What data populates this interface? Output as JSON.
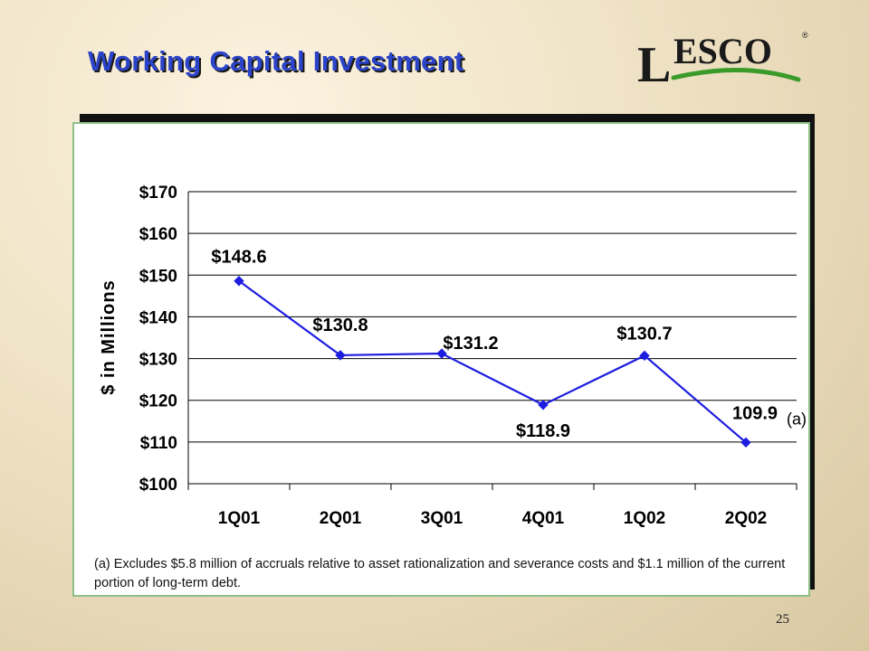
{
  "slide": {
    "title": "Working Capital Investment",
    "footnote": "(a) Excludes $5.8 million of accruals relative to asset rationalization and severance costs and $1.1 million of the current portion of long-term debt.",
    "page_number": "25"
  },
  "logo": {
    "text": "LESCO",
    "registered_mark": "®",
    "color": "#1a1a1a",
    "swoosh_color": "#3a9b2a"
  },
  "colors": {
    "title": "#2c44c9",
    "series": "#1d1de0",
    "panel_border": "#8fbf88"
  },
  "chart_data": {
    "type": "line",
    "categories": [
      "1Q01",
      "2Q01",
      "3Q01",
      "4Q01",
      "1Q02",
      "2Q02"
    ],
    "series": [
      {
        "values": [
          148.6,
          130.8,
          131.2,
          118.9,
          130.7,
          109.9
        ]
      }
    ],
    "data_labels": [
      "$148.6",
      "$130.8",
      "$131.2",
      "$118.9",
      "$130.7",
      "109.9"
    ],
    "annotation": {
      "text": "(a)",
      "category": "2Q02"
    },
    "ylabel": "$ in Millions",
    "ylim": [
      100,
      170
    ],
    "y_ticks": [
      100,
      110,
      120,
      130,
      140,
      150,
      160,
      170
    ],
    "y_tick_labels": [
      "$100",
      "$110",
      "$120",
      "$130",
      "$140",
      "$150",
      "$160",
      "$170"
    ],
    "grid": true,
    "legend": false
  }
}
